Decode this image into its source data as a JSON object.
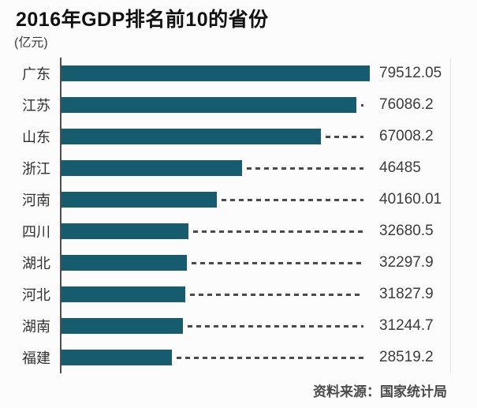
{
  "title": "2016年GDP排名前10的省份",
  "unit_label": "(亿元)",
  "source": "资料来源：国家统计局",
  "colors": {
    "bar": "#175b6e",
    "axis": "#4f4f4f",
    "dash": "#4a4a4a",
    "title_text": "#111111",
    "label_text": "#2f2f2f",
    "value_text": "#3c3c3c"
  },
  "chart_data": {
    "type": "bar",
    "orientation": "horizontal",
    "title": "2016年GDP排名前10的省份",
    "xlabel": "",
    "ylabel": "(亿元)",
    "categories": [
      "广东",
      "江苏",
      "山东",
      "浙江",
      "河南",
      "四川",
      "湖北",
      "河北",
      "湖南",
      "福建"
    ],
    "values": [
      79512.05,
      76086.2,
      67008.2,
      46485,
      40160.01,
      32680.5,
      32297.9,
      31827.9,
      31244.7,
      28519.2
    ],
    "value_labels": [
      "79512.05",
      "76086.2",
      "67008.2",
      "46485",
      "40160.01",
      "32680.5",
      "32297.9",
      "31827.9",
      "31244.7",
      "28519.2"
    ],
    "xlim": [
      0,
      79512.05
    ],
    "grid": false,
    "legend": false,
    "leader_lines": "dashed",
    "source": "资料来源：国家统计局"
  }
}
